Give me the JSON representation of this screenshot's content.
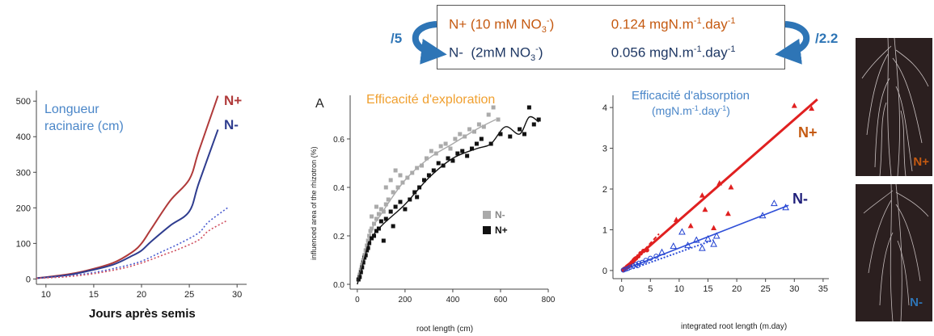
{
  "summary_box": {
    "rows": [
      {
        "label": "N+ (10 mM NO3-)",
        "label_pre": "N+ (10 mM NO",
        "label_sub": "3",
        "label_sup": "-",
        "label_post": ")",
        "value": "0.124 mgN.m-1.day-1",
        "value_pre": "0.124 mgN.m",
        "value_sup1": "-1",
        "value_mid": ".day",
        "value_sup2": "-1",
        "color": "#c55a11"
      },
      {
        "label": "N- (2mM NO3-)",
        "label_pre": "N-  (2mM NO",
        "label_sub": "3",
        "label_sup": "-",
        "label_post": ")",
        "value": "0.056 mgN.m-1.day-1",
        "value_pre": "0.056 mgN.m",
        "value_sup1": "-1",
        "value_mid": ".day",
        "value_sup2": "-1",
        "color": "#1f3864"
      }
    ],
    "left_ratio": "/5",
    "right_ratio": "/2.2",
    "arrow_color": "#2e75b6"
  },
  "photos": {
    "top_label": "N+",
    "bottom_label": "N-",
    "top_label_color": "#c55a11",
    "bottom_label_color": "#2e75b6"
  },
  "chart_data": [
    {
      "type": "line",
      "title": "Longueur racinaire (cm)",
      "title_line1": "Longueur",
      "title_line2": "racinaire (cm)",
      "xlabel": "Jours après semis",
      "ylabel": "",
      "xlim": [
        9,
        31
      ],
      "ylim": [
        -15,
        530
      ],
      "xticks": [
        10,
        15,
        20,
        25,
        30
      ],
      "yticks": [
        0,
        100,
        200,
        300,
        400,
        500
      ],
      "grid": false,
      "series": [
        {
          "name": "N+",
          "style": "solid",
          "color": "#b03a3a",
          "x": [
            9,
            12,
            14,
            17,
            19,
            20,
            21,
            23,
            25,
            26,
            28
          ],
          "y": [
            2,
            12,
            22,
            45,
            75,
            100,
            140,
            220,
            280,
            360,
            515
          ]
        },
        {
          "name": "N-",
          "style": "solid",
          "color": "#2f3d8f",
          "x": [
            9,
            12,
            14,
            17,
            19,
            20,
            21,
            23,
            25,
            26,
            28
          ],
          "y": [
            2,
            10,
            20,
            40,
            65,
            80,
            105,
            150,
            190,
            270,
            420
          ]
        },
        {
          "style": "dotted",
          "color": "#4a5cd0",
          "x": [
            9,
            12,
            15,
            18,
            20,
            22,
            24,
            26,
            27,
            29
          ],
          "y": [
            2,
            8,
            18,
            35,
            50,
            75,
            100,
            130,
            160,
            200
          ]
        },
        {
          "style": "dotted",
          "color": "#d05060",
          "x": [
            9,
            12,
            15,
            18,
            20,
            22,
            24,
            26,
            27,
            29
          ],
          "y": [
            2,
            6,
            15,
            30,
            45,
            65,
            85,
            110,
            135,
            165
          ]
        }
      ],
      "series_labels": [
        {
          "text": "N+",
          "color": "#b03a3a"
        },
        {
          "text": "N-",
          "color": "#2f3d8f"
        }
      ],
      "title_color": "#4a86c8"
    },
    {
      "type": "scatter",
      "panel_label": "A",
      "title": "Efficacité d'exploration",
      "title_color": "#f0a030",
      "xlabel": "root length (cm)",
      "ylabel": "influenced area of the rhizotron (%)",
      "xlim": [
        -30,
        800
      ],
      "ylim": [
        -0.02,
        0.78
      ],
      "xticks": [
        0,
        200,
        400,
        600,
        800
      ],
      "yticks": [
        0.0,
        0.2,
        0.4,
        0.6
      ],
      "grid": false,
      "legend_position": "bottom-right",
      "legend": [
        {
          "name": "N-",
          "color": "#aaaaaa",
          "text_color": "#888888"
        },
        {
          "name": "N+",
          "color": "#111111",
          "text_color": "#111111"
        }
      ],
      "series": [
        {
          "name": "N-",
          "color": "#aaaaaa",
          "points": [
            [
              5,
              0.02
            ],
            [
              10,
              0.04
            ],
            [
              15,
              0.06
            ],
            [
              20,
              0.08
            ],
            [
              25,
              0.1
            ],
            [
              30,
              0.12
            ],
            [
              35,
              0.14
            ],
            [
              40,
              0.16
            ],
            [
              45,
              0.18
            ],
            [
              50,
              0.2
            ],
            [
              55,
              0.22
            ],
            [
              60,
              0.23
            ],
            [
              70,
              0.25
            ],
            [
              80,
              0.27
            ],
            [
              90,
              0.29
            ],
            [
              100,
              0.31
            ],
            [
              110,
              0.3
            ],
            [
              120,
              0.33
            ],
            [
              130,
              0.35
            ],
            [
              150,
              0.38
            ],
            [
              170,
              0.4
            ],
            [
              190,
              0.42
            ],
            [
              210,
              0.44
            ],
            [
              230,
              0.46
            ],
            [
              250,
              0.48
            ],
            [
              270,
              0.49
            ],
            [
              290,
              0.52
            ],
            [
              310,
              0.55
            ],
            [
              330,
              0.54
            ],
            [
              350,
              0.57
            ],
            [
              370,
              0.58
            ],
            [
              390,
              0.56
            ],
            [
              410,
              0.6
            ],
            [
              430,
              0.62
            ],
            [
              450,
              0.61
            ],
            [
              470,
              0.64
            ],
            [
              490,
              0.63
            ],
            [
              510,
              0.66
            ],
            [
              530,
              0.65
            ],
            [
              550,
              0.7
            ],
            [
              570,
              0.73
            ],
            [
              590,
              0.68
            ],
            [
              120,
              0.4
            ],
            [
              140,
              0.43
            ],
            [
              160,
              0.47
            ],
            [
              180,
              0.45
            ],
            [
              60,
              0.28
            ],
            [
              80,
              0.32
            ]
          ]
        },
        {
          "name": "N+",
          "color": "#111111",
          "points": [
            [
              5,
              0.02
            ],
            [
              10,
              0.03
            ],
            [
              15,
              0.05
            ],
            [
              20,
              0.07
            ],
            [
              25,
              0.09
            ],
            [
              30,
              0.11
            ],
            [
              35,
              0.12
            ],
            [
              40,
              0.14
            ],
            [
              45,
              0.15
            ],
            [
              50,
              0.17
            ],
            [
              60,
              0.19
            ],
            [
              70,
              0.2
            ],
            [
              80,
              0.22
            ],
            [
              90,
              0.23
            ],
            [
              100,
              0.26
            ],
            [
              120,
              0.27
            ],
            [
              140,
              0.3
            ],
            [
              160,
              0.32
            ],
            [
              180,
              0.34
            ],
            [
              200,
              0.31
            ],
            [
              220,
              0.35
            ],
            [
              240,
              0.38
            ],
            [
              260,
              0.4
            ],
            [
              280,
              0.43
            ],
            [
              300,
              0.45
            ],
            [
              320,
              0.47
            ],
            [
              340,
              0.5
            ],
            [
              360,
              0.49
            ],
            [
              380,
              0.52
            ],
            [
              400,
              0.51
            ],
            [
              420,
              0.54
            ],
            [
              440,
              0.55
            ],
            [
              460,
              0.53
            ],
            [
              480,
              0.56
            ],
            [
              500,
              0.58
            ],
            [
              520,
              0.6
            ],
            [
              560,
              0.58
            ],
            [
              600,
              0.62
            ],
            [
              640,
              0.61
            ],
            [
              680,
              0.64
            ],
            [
              700,
              0.62
            ],
            [
              720,
              0.73
            ],
            [
              740,
              0.66
            ],
            [
              760,
              0.68
            ],
            [
              250,
              0.36
            ],
            [
              150,
              0.24
            ],
            [
              110,
              0.18
            ]
          ]
        }
      ],
      "fits": [
        {
          "name": "N-",
          "color": "#aaaaaa",
          "x": [
            0,
            50,
            100,
            200,
            300,
            400,
            500,
            580
          ],
          "y": [
            0.0,
            0.2,
            0.29,
            0.43,
            0.52,
            0.58,
            0.64,
            0.68
          ]
        },
        {
          "name": "N+",
          "color": "#111111",
          "x": [
            0,
            50,
            100,
            200,
            300,
            400,
            500,
            560,
            620,
            680,
            720,
            760
          ],
          "y": [
            0.0,
            0.17,
            0.24,
            0.33,
            0.44,
            0.52,
            0.56,
            0.58,
            0.65,
            0.62,
            0.69,
            0.67
          ]
        }
      ]
    },
    {
      "type": "scatter",
      "title": "Efficacité d'absorption (mgN.m-1.day-1)",
      "title_line1": "Efficacité d'absorption",
      "title_line2": "(mgN.m-1.day-1)",
      "title_color": "#4a86c8",
      "xlabel": "integrated root length (m.day)",
      "ylabel": "",
      "xlim": [
        -1.5,
        36
      ],
      "ylim": [
        -0.2,
        4.3
      ],
      "xticks": [
        0,
        5,
        10,
        15,
        20,
        25,
        30,
        35
      ],
      "yticks": [
        0,
        1,
        2,
        3,
        4
      ],
      "grid": false,
      "series_labels": [
        {
          "text": "N+",
          "color": "#c55a11"
        },
        {
          "text": "N-",
          "color": "#1f1f7a"
        }
      ],
      "series": [
        {
          "name": "N+ filled circles",
          "color": "#e02020",
          "marker": "circle-filled",
          "points": [
            [
              0.3,
              0.02
            ],
            [
              0.6,
              0.05
            ],
            [
              0.9,
              0.08
            ],
            [
              1.2,
              0.12
            ],
            [
              1.5,
              0.15
            ],
            [
              1.8,
              0.2
            ],
            [
              2.1,
              0.25
            ],
            [
              2.5,
              0.3
            ],
            [
              2.9,
              0.35
            ],
            [
              3.3,
              0.42
            ],
            [
              3.8,
              0.48
            ],
            [
              4.4,
              0.5
            ],
            [
              1.0,
              0.1
            ],
            [
              0.5,
              0.04
            ],
            [
              2.3,
              0.28
            ]
          ]
        },
        {
          "name": "N+ triangles",
          "color": "#e02020",
          "marker": "triangle-filled",
          "points": [
            [
              9.5,
              1.25
            ],
            [
              12,
              1.1
            ],
            [
              14,
              1.85
            ],
            [
              14.5,
              1.5
            ],
            [
              16,
              1.05
            ],
            [
              17,
              2.15
            ],
            [
              18.5,
              1.4
            ],
            [
              19,
              2.05
            ],
            [
              30,
              4.05
            ],
            [
              33,
              3.98
            ]
          ]
        },
        {
          "name": "N- open circles",
          "color": "#2040d0",
          "marker": "circle-open",
          "points": [
            [
              0.3,
              0.01
            ],
            [
              0.7,
              0.03
            ],
            [
              1.1,
              0.05
            ],
            [
              1.5,
              0.08
            ],
            [
              2.0,
              0.11
            ],
            [
              2.5,
              0.15
            ],
            [
              3.0,
              0.18
            ],
            [
              3.6,
              0.2
            ],
            [
              4.2,
              0.25
            ],
            [
              5.0,
              0.3
            ],
            [
              6.0,
              0.35
            ],
            [
              2.8,
              0.12
            ]
          ]
        },
        {
          "name": "N- triangles",
          "color": "#2040d0",
          "marker": "triangle-open",
          "points": [
            [
              7,
              0.45
            ],
            [
              9,
              0.6
            ],
            [
              10.5,
              0.95
            ],
            [
              11.5,
              0.62
            ],
            [
              13,
              0.75
            ],
            [
              14,
              0.55
            ],
            [
              15,
              0.78
            ],
            [
              16,
              0.65
            ],
            [
              16.5,
              0.85
            ],
            [
              24.5,
              1.35
            ],
            [
              26.5,
              1.65
            ],
            [
              28.5,
              1.55
            ]
          ]
        }
      ],
      "fits": [
        {
          "name": "N+",
          "color": "#e02020",
          "style": "solid",
          "x": [
            0,
            34
          ],
          "y": [
            0,
            4.2
          ]
        },
        {
          "name": "N+ early",
          "color": "#e02020",
          "style": "dashed",
          "x": [
            1,
            6.5
          ],
          "y": [
            0.05,
            0.9
          ]
        },
        {
          "name": "N-",
          "color": "#3050d8",
          "style": "solid",
          "x": [
            0,
            29
          ],
          "y": [
            0,
            1.6
          ]
        },
        {
          "name": "N- early",
          "color": "#3050d8",
          "style": "dotted",
          "x": [
            2,
            16
          ],
          "y": [
            0.05,
            0.75
          ]
        }
      ]
    }
  ]
}
